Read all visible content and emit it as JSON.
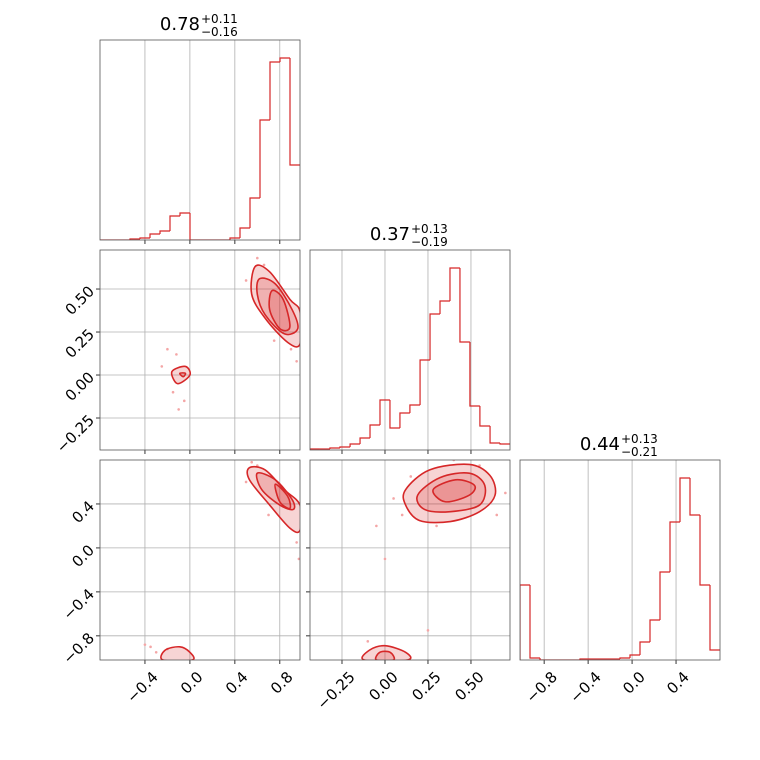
{
  "chart_data": {
    "type": "corner",
    "color": "#d62728",
    "point_color": "#f4a6a6",
    "grid": true,
    "parameters": [
      {
        "lim": [
          -0.8,
          0.98
        ],
        "ticks": [
          {
            "value": -0.4,
            "label": "−0.4"
          },
          {
            "value": 0,
            "label": "0.0"
          },
          {
            "value": 0.4,
            "label": "0.4"
          },
          {
            "value": 0.8,
            "label": "0.8"
          }
        ],
        "title": {
          "value": "0.78",
          "plus": "+0.11",
          "minus": "−0.16"
        },
        "hist": {
          "bins": [
            -0.8,
            -0.711,
            -0.622,
            -0.533,
            -0.444,
            -0.355,
            -0.266,
            -0.177,
            -0.088,
            0.001,
            0.09,
            0.179,
            0.268,
            0.357,
            0.446,
            0.535,
            0.624,
            0.713,
            0.802,
            0.891,
            0.98
          ],
          "counts": [
            0,
            0,
            0,
            1,
            2,
            6,
            9,
            24,
            27,
            0,
            0,
            0,
            0,
            2,
            12,
            42,
            120,
            178,
            182,
            75
          ],
          "ylim": [
            0,
            200
          ]
        }
      },
      {
        "lim": [
          -0.436,
          0.727
        ],
        "ticks": [
          {
            "value": -0.25,
            "label": "−0.25"
          },
          {
            "value": 0,
            "label": "0.00"
          },
          {
            "value": 0.25,
            "label": "0.25"
          },
          {
            "value": 0.5,
            "label": "0.50"
          }
        ],
        "title": {
          "value": "0.37",
          "plus": "+0.13",
          "minus": "−0.19"
        },
        "hist": {
          "bins": [
            -0.436,
            -0.378,
            -0.32,
            -0.262,
            -0.203,
            -0.145,
            -0.087,
            -0.029,
            0.029,
            0.087,
            0.145,
            0.204,
            0.262,
            0.32,
            0.378,
            0.436,
            0.494,
            0.552,
            0.611,
            0.669,
            0.727
          ],
          "counts": [
            1,
            1,
            2,
            3,
            6,
            12,
            25,
            50,
            22,
            37,
            45,
            90,
            136,
            149,
            182,
            108,
            44,
            24,
            7,
            6
          ],
          "ylim": [
            0,
            200
          ]
        }
      },
      {
        "lim": [
          -1.02,
          0.8
        ],
        "ticks": [
          {
            "value": -0.8,
            "label": "−0.8"
          },
          {
            "value": -0.4,
            "label": "−0.4"
          },
          {
            "value": 0,
            "label": "0.0"
          },
          {
            "value": 0.4,
            "label": "0.4"
          }
        ],
        "title": {
          "value": "0.44",
          "plus": "+0.13",
          "minus": "−0.21"
        },
        "hist": {
          "bins": [
            -1.02,
            -0.929,
            -0.838,
            -0.747,
            -0.656,
            -0.565,
            -0.474,
            -0.383,
            -0.292,
            -0.201,
            -0.11,
            -0.019,
            0.072,
            0.163,
            0.254,
            0.345,
            0.436,
            0.527,
            0.618,
            0.709,
            0.8
          ],
          "counts": [
            75,
            2,
            0,
            0,
            0,
            0,
            1,
            1,
            1,
            1,
            2,
            5,
            18,
            40,
            88,
            138,
            182,
            145,
            75,
            10
          ],
          "ylim": [
            0,
            200
          ]
        }
      }
    ],
    "panels": [
      {
        "row": 1,
        "col": 0,
        "points": {
          "x": [
            0.6,
            0.66,
            0.9,
            0.95,
            -0.2,
            -0.15,
            -0.1,
            -0.25,
            -0.05,
            0.5,
            0.75,
            -0.12
          ],
          "y": [
            0.68,
            0.64,
            0.15,
            0.08,
            0.15,
            -0.1,
            -0.2,
            0.05,
            -0.15,
            0.55,
            0.2,
            0.12
          ]
        },
        "contours": [
          {
            "x": [
              0.58,
              0.71,
              0.89,
              0.98,
              0.98,
              0.87,
              0.67,
              0.55
            ],
            "y": [
              0.63,
              0.6,
              0.44,
              0.37,
              0.18,
              0.19,
              0.33,
              0.47
            ]
          },
          {
            "x": [
              0.62,
              0.76,
              0.91,
              0.96,
              0.84,
              0.67,
              0.6
            ],
            "y": [
              0.56,
              0.53,
              0.38,
              0.27,
              0.24,
              0.35,
              0.47
            ]
          },
          {
            "x": [
              0.73,
              0.83,
              0.89,
              0.8,
              0.71
            ],
            "y": [
              0.49,
              0.44,
              0.28,
              0.27,
              0.38
            ]
          },
          {
            "x": [
              -0.16,
              -0.04,
              0,
              -0.11
            ],
            "y": [
              0.02,
              0.05,
              0,
              -0.05
            ]
          },
          {
            "x": [
              -0.09,
              -0.04,
              -0.06
            ],
            "y": [
              0.01,
              0.01,
              -0.01
            ]
          }
        ]
      },
      {
        "row": 2,
        "col": 0,
        "points": {
          "x": [
            0.55,
            0.6,
            0.95,
            0.97,
            -0.4,
            -0.3,
            -0.2,
            -0.35,
            0.7,
            0.5
          ],
          "y": [
            0.78,
            0.75,
            0.05,
            -0.1,
            -0.88,
            -0.95,
            -0.92,
            -0.9,
            0.3,
            0.6
          ]
        },
        "contours": [
          {
            "x": [
              0.53,
              0.67,
              0.84,
              0.98,
              0.98,
              0.89,
              0.71,
              0.53
            ],
            "y": [
              0.73,
              0.71,
              0.53,
              0.39,
              0.16,
              0.18,
              0.39,
              0.62
            ]
          },
          {
            "x": [
              0.6,
              0.76,
              0.91,
              0.92,
              0.8,
              0.64
            ],
            "y": [
              0.68,
              0.62,
              0.44,
              0.35,
              0.39,
              0.53
            ]
          },
          {
            "x": [
              0.76,
              0.87,
              0.89,
              0.8
            ],
            "y": [
              0.58,
              0.47,
              0.36,
              0.42
            ]
          },
          {
            "x": [
              -0.24,
              -0.22,
              -0.09,
              0,
              0.02
            ],
            "y": [
              -1.02,
              -0.93,
              -0.9,
              -0.95,
              -1.02
            ]
          }
        ]
      },
      {
        "row": 2,
        "col": 1,
        "points": {
          "x": [
            0.05,
            0.1,
            0.65,
            0.7,
            0.3,
            0.4,
            -0.05,
            0,
            0.25,
            -0.1,
            0.55,
            0.15
          ],
          "y": [
            0.45,
            0.3,
            0.3,
            0.5,
            0.2,
            0.8,
            0.2,
            -0.1,
            -0.75,
            -0.85,
            0.75,
            0.65
          ]
        },
        "contours": [
          {
            "x": [
              0.12,
              0.26,
              0.49,
              0.61,
              0.64,
              0.55,
              0.38,
              0.2,
              0.12
            ],
            "y": [
              0.53,
              0.71,
              0.76,
              0.66,
              0.48,
              0.33,
              0.24,
              0.25,
              0.39
            ]
          },
          {
            "x": [
              0.19,
              0.32,
              0.49,
              0.58,
              0.55,
              0.38,
              0.23
            ],
            "y": [
              0.48,
              0.64,
              0.68,
              0.57,
              0.39,
              0.33,
              0.35
            ]
          },
          {
            "x": [
              0.28,
              0.41,
              0.52,
              0.49,
              0.35
            ],
            "y": [
              0.53,
              0.62,
              0.57,
              0.48,
              0.42
            ]
          },
          {
            "x": [
              -0.12,
              -0.09,
              0,
              0.12,
              0.13
            ],
            "y": [
              -1.02,
              -0.93,
              -0.89,
              -0.95,
              -1.02
            ]
          },
          {
            "x": [
              -0.05,
              -0.03,
              0.03,
              0.05
            ],
            "y": [
              -1.02,
              -0.95,
              -0.95,
              -1.02
            ]
          }
        ]
      }
    ]
  }
}
